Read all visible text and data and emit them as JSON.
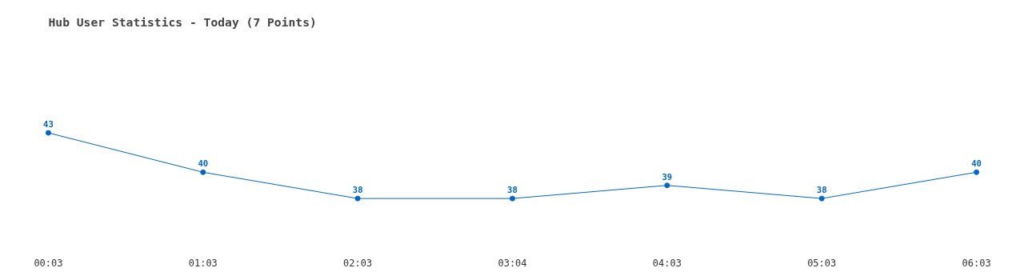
{
  "chart_data": {
    "type": "line",
    "title": "Hub User Statistics - Today (7 Points)",
    "categories": [
      "00:03",
      "01:03",
      "02:03",
      "03:04",
      "04:03",
      "05:03",
      "06:03"
    ],
    "series": [
      {
        "color": "#0066cc",
        "values": [
          43,
          40,
          38,
          38,
          39,
          38,
          40
        ]
      }
    ],
    "data_labels": true,
    "marker": "circle"
  }
}
